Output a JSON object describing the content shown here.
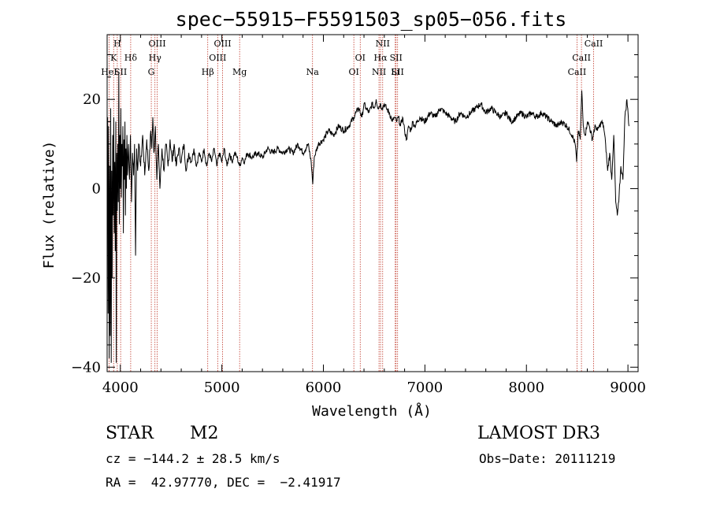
{
  "chart_data": {
    "type": "line",
    "title": "spec−55915−F5591503_sp05−056.fits",
    "xlabel": "Wavelength (Å)",
    "ylabel": "Flux (relative)",
    "xlim": [
      3870,
      9100
    ],
    "ylim": [
      -41,
      34.5
    ],
    "xticks": [
      4000,
      5000,
      6000,
      7000,
      8000,
      9000
    ],
    "yticks": [
      -40,
      -20,
      0,
      20
    ],
    "ytick_labels": [
      "−40",
      "−20",
      "0",
      "20"
    ],
    "series": [
      {
        "name": "spectrum",
        "points": [
          [
            3875,
            16
          ],
          [
            3880,
            -28
          ],
          [
            3885,
            14
          ],
          [
            3890,
            -38
          ],
          [
            3895,
            5
          ],
          [
            3900,
            -33
          ],
          [
            3905,
            18
          ],
          [
            3910,
            -39
          ],
          [
            3915,
            4
          ],
          [
            3920,
            -20
          ],
          [
            3925,
            12
          ],
          [
            3930,
            -6
          ],
          [
            3935,
            16
          ],
          [
            3940,
            -10
          ],
          [
            3945,
            6
          ],
          [
            3950,
            -14
          ],
          [
            3955,
            15
          ],
          [
            3960,
            -39
          ],
          [
            3965,
            8
          ],
          [
            3970,
            -5
          ],
          [
            3975,
            10
          ],
          [
            3980,
            -3
          ],
          [
            3985,
            26
          ],
          [
            3990,
            -8
          ],
          [
            3995,
            12
          ],
          [
            4000,
            0
          ],
          [
            4005,
            18
          ],
          [
            4010,
            -2
          ],
          [
            4015,
            10
          ],
          [
            4020,
            5
          ],
          [
            4025,
            14
          ],
          [
            4030,
            -10
          ],
          [
            4035,
            11
          ],
          [
            4040,
            2
          ],
          [
            4045,
            15
          ],
          [
            4050,
            -6
          ],
          [
            4055,
            9
          ],
          [
            4060,
            0
          ],
          [
            4065,
            12
          ],
          [
            4070,
            3
          ],
          [
            4080,
            10
          ],
          [
            4090,
            2
          ],
          [
            4100,
            12
          ],
          [
            4110,
            -3
          ],
          [
            4120,
            8
          ],
          [
            4130,
            3
          ],
          [
            4140,
            10
          ],
          [
            4150,
            -15
          ],
          [
            4160,
            9
          ],
          [
            4170,
            4
          ],
          [
            4180,
            10
          ],
          [
            4200,
            5
          ],
          [
            4220,
            12
          ],
          [
            4240,
            3
          ],
          [
            4260,
            11
          ],
          [
            4280,
            4
          ],
          [
            4300,
            13
          ],
          [
            4310,
            9
          ],
          [
            4320,
            16
          ],
          [
            4330,
            8
          ],
          [
            4345,
            14
          ],
          [
            4360,
            2
          ],
          [
            4375,
            10
          ],
          [
            4390,
            0
          ],
          [
            4410,
            9
          ],
          [
            4430,
            4
          ],
          [
            4450,
            10
          ],
          [
            4470,
            5
          ],
          [
            4490,
            11
          ],
          [
            4510,
            6
          ],
          [
            4530,
            10
          ],
          [
            4550,
            5
          ],
          [
            4575,
            9
          ],
          [
            4600,
            6
          ],
          [
            4625,
            10
          ],
          [
            4650,
            4
          ],
          [
            4675,
            8
          ],
          [
            4700,
            6
          ],
          [
            4725,
            9
          ],
          [
            4750,
            5
          ],
          [
            4775,
            8
          ],
          [
            4800,
            6
          ],
          [
            4825,
            9
          ],
          [
            4850,
            5
          ],
          [
            4875,
            8
          ],
          [
            4900,
            6
          ],
          [
            4925,
            9
          ],
          [
            4950,
            5
          ],
          [
            4975,
            8
          ],
          [
            5000,
            6
          ],
          [
            5025,
            9
          ],
          [
            5050,
            5
          ],
          [
            5075,
            8
          ],
          [
            5100,
            6
          ],
          [
            5125,
            8
          ],
          [
            5150,
            7
          ],
          [
            5175,
            5
          ],
          [
            5200,
            7
          ],
          [
            5225,
            6
          ],
          [
            5250,
            8
          ],
          [
            5300,
            7
          ],
          [
            5350,
            8
          ],
          [
            5400,
            7
          ],
          [
            5450,
            9
          ],
          [
            5500,
            8
          ],
          [
            5550,
            9
          ],
          [
            5600,
            8
          ],
          [
            5650,
            9
          ],
          [
            5700,
            8
          ],
          [
            5750,
            10
          ],
          [
            5800,
            8
          ],
          [
            5850,
            10
          ],
          [
            5880,
            6
          ],
          [
            5895,
            1
          ],
          [
            5910,
            7
          ],
          [
            5950,
            10
          ],
          [
            6000,
            11
          ],
          [
            6050,
            13
          ],
          [
            6100,
            12
          ],
          [
            6150,
            14
          ],
          [
            6200,
            13
          ],
          [
            6250,
            14
          ],
          [
            6300,
            16
          ],
          [
            6320,
            17
          ],
          [
            6350,
            18
          ],
          [
            6380,
            16
          ],
          [
            6400,
            19
          ],
          [
            6420,
            18
          ],
          [
            6450,
            17
          ],
          [
            6480,
            19
          ],
          [
            6500,
            18
          ],
          [
            6520,
            20
          ],
          [
            6540,
            18
          ],
          [
            6560,
            19
          ],
          [
            6580,
            18
          ],
          [
            6600,
            19
          ],
          [
            6620,
            18
          ],
          [
            6650,
            17
          ],
          [
            6680,
            15
          ],
          [
            6700,
            16
          ],
          [
            6720,
            15
          ],
          [
            6740,
            16
          ],
          [
            6760,
            14
          ],
          [
            6780,
            16
          ],
          [
            6800,
            13
          ],
          [
            6820,
            11
          ],
          [
            6840,
            14
          ],
          [
            6860,
            13
          ],
          [
            6880,
            15
          ],
          [
            6900,
            14
          ],
          [
            6950,
            16
          ],
          [
            7000,
            15
          ],
          [
            7050,
            17
          ],
          [
            7100,
            16
          ],
          [
            7150,
            18
          ],
          [
            7200,
            17
          ],
          [
            7250,
            16
          ],
          [
            7300,
            15
          ],
          [
            7350,
            17
          ],
          [
            7400,
            16
          ],
          [
            7450,
            17
          ],
          [
            7500,
            18
          ],
          [
            7550,
            19
          ],
          [
            7600,
            17
          ],
          [
            7650,
            18
          ],
          [
            7700,
            17
          ],
          [
            7750,
            16
          ],
          [
            7800,
            17
          ],
          [
            7850,
            15
          ],
          [
            7900,
            16
          ],
          [
            7950,
            17
          ],
          [
            8000,
            16
          ],
          [
            8050,
            17
          ],
          [
            8100,
            16
          ],
          [
            8150,
            17
          ],
          [
            8200,
            16
          ],
          [
            8250,
            15
          ],
          [
            8300,
            14
          ],
          [
            8350,
            15
          ],
          [
            8400,
            14
          ],
          [
            8450,
            12
          ],
          [
            8480,
            10
          ],
          [
            8495,
            6
          ],
          [
            8510,
            13
          ],
          [
            8530,
            11
          ],
          [
            8545,
            22
          ],
          [
            8560,
            14
          ],
          [
            8580,
            12
          ],
          [
            8600,
            15
          ],
          [
            8620,
            14
          ],
          [
            8650,
            11
          ],
          [
            8665,
            13
          ],
          [
            8680,
            14
          ],
          [
            8700,
            13
          ],
          [
            8720,
            14
          ],
          [
            8740,
            15
          ],
          [
            8760,
            14
          ],
          [
            8780,
            10
          ],
          [
            8800,
            4
          ],
          [
            8820,
            8
          ],
          [
            8840,
            2
          ],
          [
            8860,
            12
          ],
          [
            8880,
            -3
          ],
          [
            8895,
            -6
          ],
          [
            8910,
            -3
          ],
          [
            8930,
            5
          ],
          [
            8950,
            2
          ],
          [
            8970,
            16
          ],
          [
            8990,
            20
          ],
          [
            9010,
            14
          ]
        ]
      }
    ],
    "spectral_lines": [
      {
        "wavelength": 3889,
        "labels": [
          "HeI"
        ]
      },
      {
        "wavelength": 3934,
        "labels": [
          "K"
        ]
      },
      {
        "wavelength": 3970,
        "labels": [
          "H"
        ]
      },
      {
        "wavelength": 4003,
        "labels": [
          "SII"
        ]
      },
      {
        "wavelength": 4102,
        "labels": [
          "Hδ"
        ]
      },
      {
        "wavelength": 4305,
        "labels": [
          "G"
        ]
      },
      {
        "wavelength": 4341,
        "labels": [
          "Hγ"
        ]
      },
      {
        "wavelength": 4363,
        "labels": [
          "OIII"
        ]
      },
      {
        "wavelength": 4861,
        "labels": [
          "Hβ"
        ]
      },
      {
        "wavelength": 4959,
        "labels": [
          "OIII"
        ]
      },
      {
        "wavelength": 5007,
        "labels": [
          "OIII"
        ]
      },
      {
        "wavelength": 5175,
        "labels": [
          "Mg"
        ]
      },
      {
        "wavelength": 5893,
        "labels": [
          "Na"
        ]
      },
      {
        "wavelength": 6300,
        "labels": [
          "OI"
        ]
      },
      {
        "wavelength": 6363,
        "labels": [
          "OI"
        ]
      },
      {
        "wavelength": 6548,
        "labels": [
          "NII"
        ]
      },
      {
        "wavelength": 6563,
        "labels": [
          "Hα"
        ]
      },
      {
        "wavelength": 6584,
        "labels": [
          "NII"
        ]
      },
      {
        "wavelength": 6708,
        "labels": [
          "Li"
        ]
      },
      {
        "wavelength": 6716,
        "labels": [
          "SII"
        ]
      },
      {
        "wavelength": 6731,
        "labels": [
          "SII"
        ]
      },
      {
        "wavelength": 8498,
        "labels": [
          "CaII"
        ]
      },
      {
        "wavelength": 8542,
        "labels": [
          "CaII"
        ]
      },
      {
        "wavelength": 8662,
        "labels": [
          "CaII"
        ]
      }
    ]
  },
  "info": {
    "class": "STAR",
    "subclass": "M2",
    "survey": "LAMOST DR3",
    "cz": "cz = −144.2 ± 28.5 km/s",
    "obs_date": "Obs−Date: 20111219",
    "radec": "RA =  42.97770, DEC =  −2.41917"
  },
  "colors": {
    "line_marker": "#c0392b",
    "spectrum": "#000000"
  }
}
